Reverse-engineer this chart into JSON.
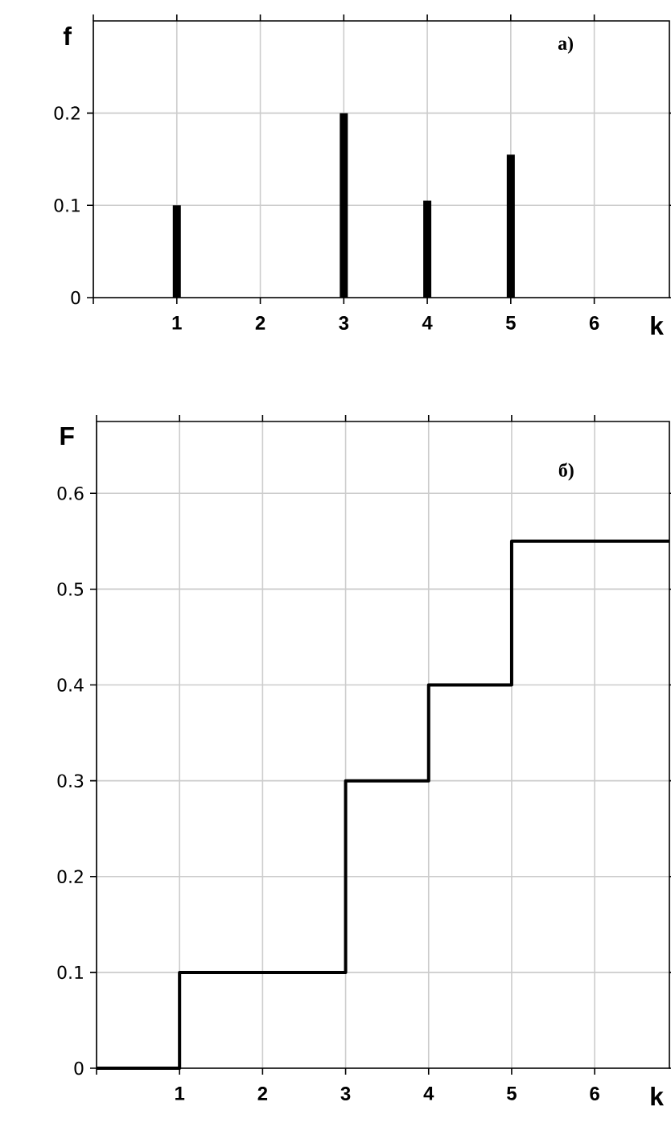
{
  "chart_data": [
    {
      "type": "bar",
      "title": "а)",
      "xlabel": "k",
      "ylabel": "f",
      "x": [
        1,
        3,
        4,
        5
      ],
      "values": [
        0.1,
        0.2,
        0.105,
        0.155
      ],
      "color": "#000000",
      "xlim": [
        0,
        6.9
      ],
      "xticks": [
        {
          "value": 0,
          "label": null
        },
        1,
        2,
        3,
        4,
        5,
        6
      ],
      "ylim": [
        0,
        0.3
      ],
      "yticks": [
        0,
        0.1,
        0.2
      ],
      "grid": true
    },
    {
      "type": "step",
      "title": "б)",
      "xlabel": "k",
      "ylabel": "F",
      "x": [
        0,
        1,
        3,
        4,
        5,
        6.9
      ],
      "values": [
        0,
        0.1,
        0.3,
        0.4,
        0.55,
        0.55
      ],
      "color": "#000000",
      "xlim": [
        0,
        6.9
      ],
      "xticks": [
        {
          "value": 0,
          "label": null
        },
        1,
        2,
        3,
        4,
        5,
        6
      ],
      "ylim": [
        0,
        0.675
      ],
      "yticks": [
        0,
        0.1,
        0.2,
        0.3,
        0.4,
        0.5,
        0.6
      ],
      "grid": true
    }
  ]
}
